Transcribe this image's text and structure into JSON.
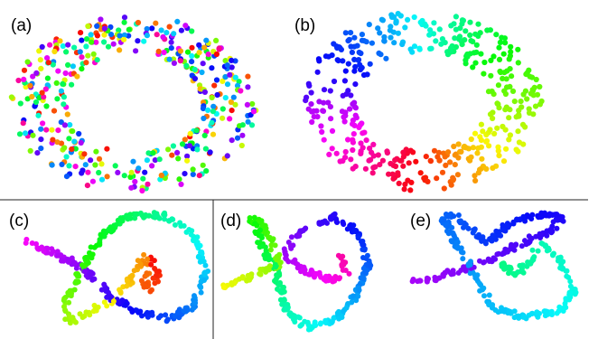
{
  "figure": {
    "panels": [
      {
        "id": "a",
        "label": "(a)"
      },
      {
        "id": "b",
        "label": "(b)"
      },
      {
        "id": "c",
        "label": "(c)"
      },
      {
        "id": "d",
        "label": "(d)"
      },
      {
        "id": "e",
        "label": "(e)"
      }
    ]
  }
}
